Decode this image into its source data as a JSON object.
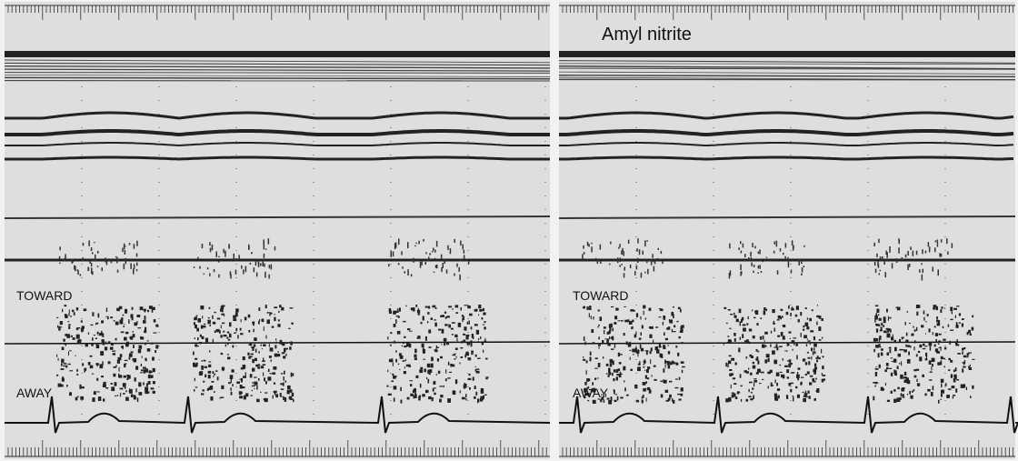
{
  "panels": [
    {
      "label_toward": "TOWARD",
      "label_away": "AWAY"
    },
    {
      "title": "Amyl nitrite",
      "label_toward": "TOWARD",
      "label_away": "AWAY"
    }
  ]
}
